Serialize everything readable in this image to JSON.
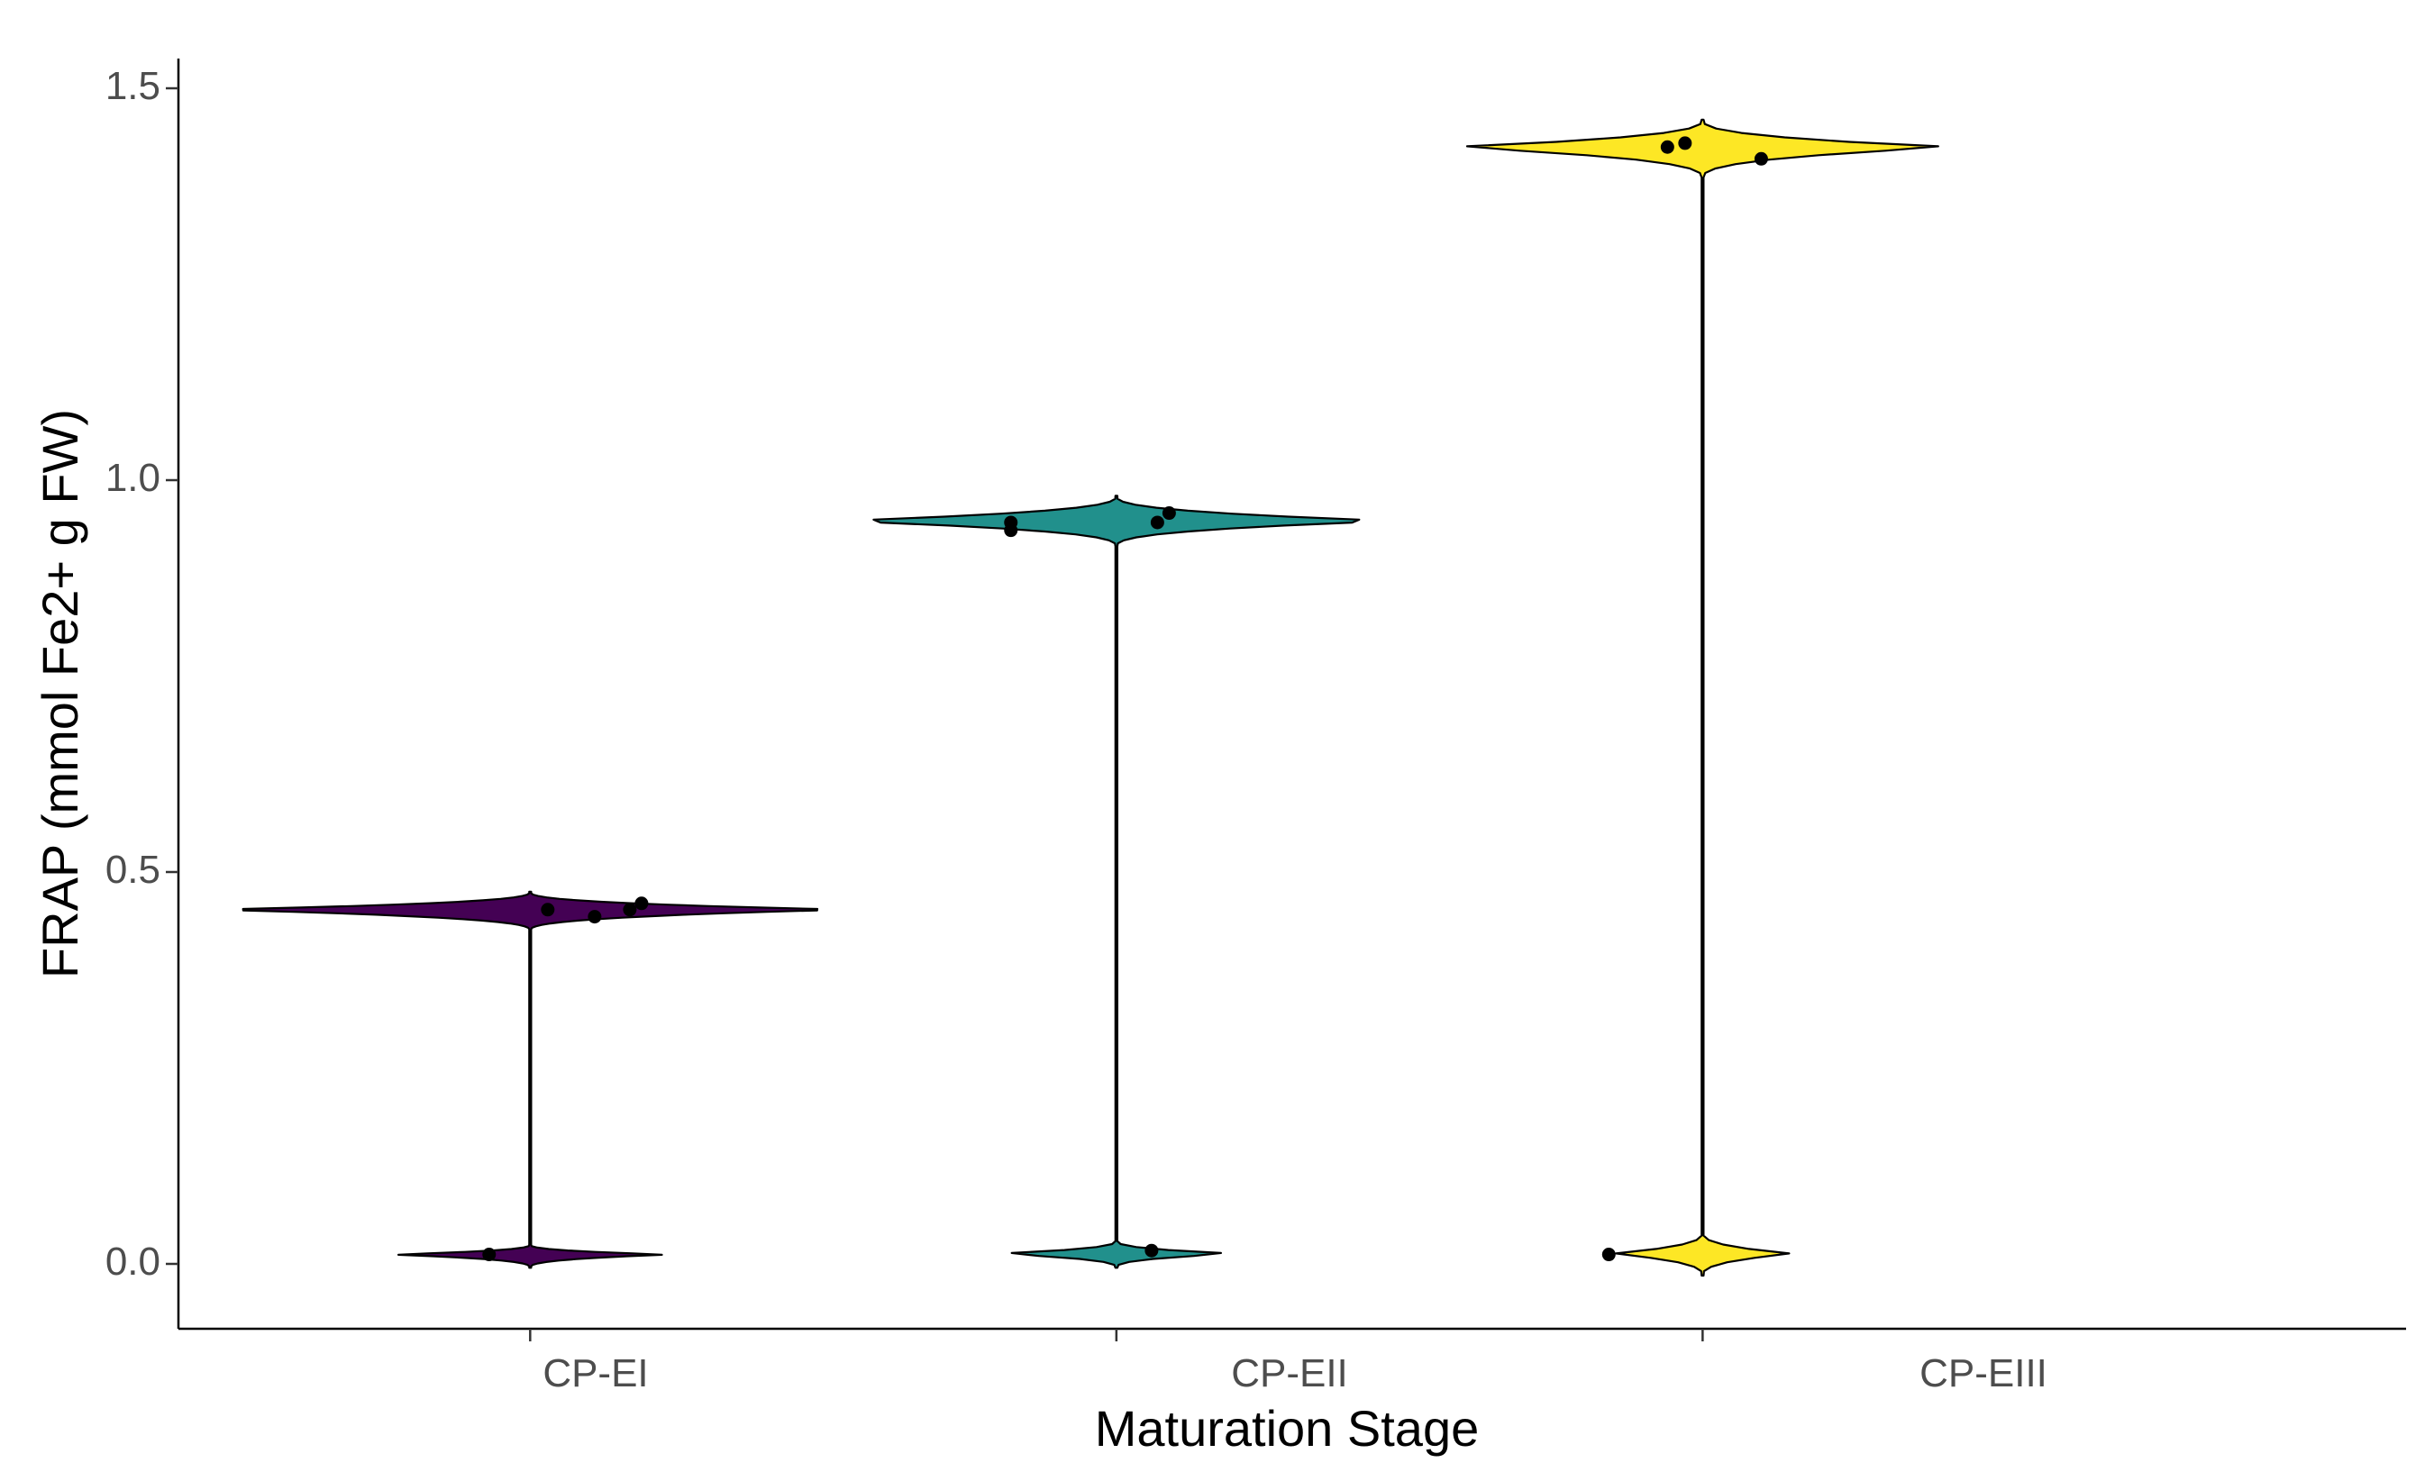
{
  "chart_data": {
    "type": "violin",
    "title": "",
    "xlabel": "Maturation Stage",
    "ylabel": "FRAP (mmol Fe2+ g FW)",
    "ylim": [
      -0.085,
      1.525
    ],
    "yticks": [
      0.0,
      0.5,
      1.0,
      1.5
    ],
    "ytick_labels": [
      "0.0",
      "0.5",
      "1.0",
      "1.5"
    ],
    "categories": [
      "CP-EI",
      "CP-EII",
      "CP-EIII"
    ],
    "fill_colors": [
      "#440154",
      "#21908C",
      "#FDE725"
    ],
    "grid": false,
    "legend": "none",
    "series": [
      {
        "name": "CP-EI",
        "range": [
          -0.005,
          0.475
        ],
        "lobes": [
          {
            "center": 0.012,
            "low": -0.005,
            "high": 0.025,
            "halfwidth": 0.265
          },
          {
            "center": 0.452,
            "low": 0.425,
            "high": 0.475,
            "halfwidth": 0.6
          }
        ],
        "points": [
          {
            "offset": -0.07,
            "y": 0.012
          },
          {
            "offset": 0.03,
            "y": 0.452
          },
          {
            "offset": 0.11,
            "y": 0.443
          },
          {
            "offset": 0.17,
            "y": 0.452
          },
          {
            "offset": 0.19,
            "y": 0.46
          }
        ]
      },
      {
        "name": "CP-EII",
        "range": [
          -0.005,
          0.98
        ],
        "lobes": [
          {
            "center": 0.013,
            "low": -0.005,
            "high": 0.03,
            "halfwidth": 0.23
          },
          {
            "center": 0.948,
            "low": 0.915,
            "high": 0.98,
            "halfwidth": 0.53
          }
        ],
        "points": [
          {
            "offset": 0.06,
            "y": 0.017
          },
          {
            "offset": -0.18,
            "y": 0.946
          },
          {
            "offset": -0.18,
            "y": 0.936
          },
          {
            "offset": 0.07,
            "y": 0.946
          },
          {
            "offset": 0.09,
            "y": 0.958
          }
        ]
      },
      {
        "name": "CP-EIII",
        "range": [
          -0.015,
          1.46
        ],
        "lobes": [
          {
            "center": 0.013,
            "low": -0.015,
            "high": 0.04,
            "halfwidth": 0.17
          },
          {
            "center": 1.425,
            "low": 1.385,
            "high": 1.46,
            "halfwidth": 0.48
          }
        ],
        "points": [
          {
            "offset": -0.16,
            "y": 0.012
          },
          {
            "offset": -0.06,
            "y": 1.425
          },
          {
            "offset": -0.03,
            "y": 1.43
          },
          {
            "offset": 0.1,
            "y": 1.41
          }
        ]
      }
    ]
  }
}
